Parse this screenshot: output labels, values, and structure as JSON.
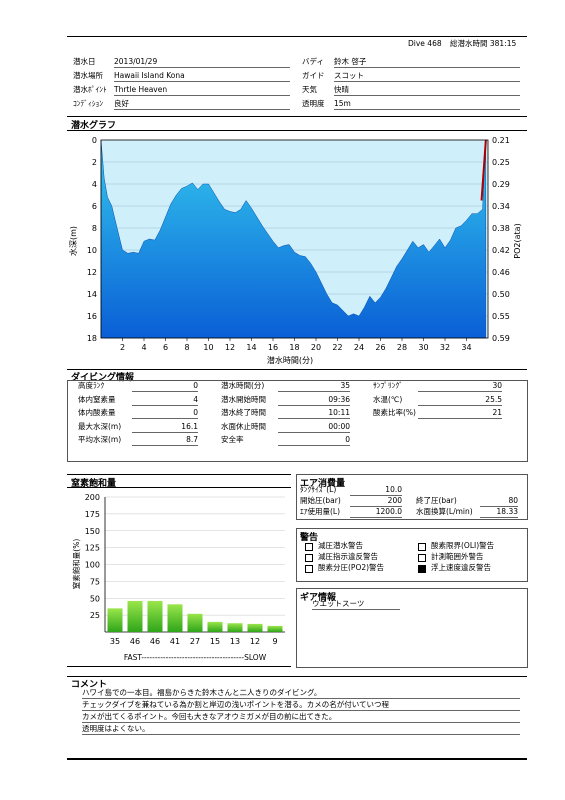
{
  "header": {
    "dive_number": "Dive 468",
    "total_time": "総潜水時間 381:15"
  },
  "info_left": [
    {
      "label": "潜水日",
      "value": "2013/01/29"
    },
    {
      "label": "潜水場所",
      "value": "Hawaii Island  Kona"
    },
    {
      "label": "潜水ﾎﾟｲﾝﾄ",
      "value": "Thrtle Heaven"
    },
    {
      "label": "ｺﾝﾃﾞｨｼｮﾝ",
      "value": "良好"
    }
  ],
  "info_right": [
    {
      "label": "バディ",
      "value": "鈴木 啓子"
    },
    {
      "label": "ガイド",
      "value": "スコット"
    },
    {
      "label": "天気",
      "value": "快晴"
    },
    {
      "label": "透明度",
      "value": "15m"
    }
  ],
  "dive_graph": {
    "title": "潜水グラフ",
    "xlabel": "潜水時間(分)",
    "ylabel_left": "水深(m)",
    "ylabel_right": "PO2(ata)"
  },
  "chart_data": [
    {
      "type": "area",
      "x_ticks": [
        "2",
        "4",
        "6",
        "8",
        "10",
        "12",
        "14",
        "16",
        "18",
        "20",
        "22",
        "24",
        "26",
        "28",
        "30",
        "32",
        "34"
      ],
      "y_ticks_left": [
        "0",
        "2",
        "4",
        "6",
        "8",
        "10",
        "12",
        "14",
        "16",
        "18"
      ],
      "y_ticks_right": [
        "0.21",
        "0.25",
        "0.29",
        "0.34",
        "0.38",
        "0.42",
        "0.46",
        "0.50",
        "0.55",
        "0.59"
      ],
      "xlim": [
        0,
        36
      ],
      "ylim_depth": [
        0,
        18
      ],
      "ylim_po2": [
        0.21,
        0.59
      ],
      "grid": "horizontal",
      "series": [
        {
          "x": [
            0,
            0.3,
            0.6,
            1.0,
            1.5,
            2.0,
            2.5,
            3.0,
            3.5,
            4.0,
            4.5,
            5.0,
            5.5,
            6.0,
            6.5,
            7.0,
            7.5,
            8.0,
            8.5,
            9.0,
            9.5,
            10.0,
            10.5,
            11.0,
            11.5,
            12.0,
            12.5,
            13.0,
            13.5,
            14.0,
            14.5,
            15.0,
            15.5,
            16.0,
            16.5,
            17.0,
            17.5,
            18.0,
            18.5,
            19.0,
            19.5,
            20.0,
            20.5,
            21.0,
            21.5,
            22.0,
            22.5,
            23.0,
            23.5,
            24.0,
            24.5,
            25.0,
            25.5,
            26.0,
            26.5,
            27.0,
            27.5,
            28.0,
            28.5,
            29.0,
            29.5,
            30.0,
            30.5,
            31.0,
            31.5,
            32.0,
            32.5,
            33.0,
            33.5,
            34.0,
            34.5,
            35.0,
            35.5,
            35.8
          ],
          "depth": [
            0,
            3.5,
            5.2,
            6.0,
            8.0,
            10.0,
            10.3,
            10.2,
            10.3,
            9.2,
            9.0,
            9.1,
            8.2,
            7.0,
            5.8,
            5.0,
            4.4,
            4.2,
            3.9,
            4.5,
            4.0,
            4.0,
            4.8,
            5.6,
            6.3,
            6.5,
            6.6,
            6.3,
            5.5,
            6.2,
            7.0,
            7.8,
            8.5,
            9.2,
            9.8,
            9.6,
            9.5,
            10.2,
            10.5,
            10.6,
            11.2,
            12.0,
            13.0,
            14.0,
            14.8,
            15.0,
            15.5,
            16.0,
            15.8,
            16.0,
            15.2,
            14.2,
            14.8,
            14.3,
            13.5,
            12.5,
            11.5,
            10.8,
            10.0,
            9.2,
            9.8,
            9.5,
            10.2,
            9.6,
            9.0,
            9.8,
            9.1,
            8.0,
            7.8,
            7.3,
            6.7,
            6.7,
            6.3,
            0
          ],
          "po2_ascent_segment": {
            "x": [
              35.4,
              35.8
            ],
            "depth": [
              5.5,
              0
            ]
          }
        }
      ]
    },
    {
      "type": "bar",
      "title": "窒素飽和量",
      "ylabel": "窒素飽和量(%)",
      "ylim": [
        0,
        200
      ],
      "y_ticks": [
        "200",
        "175",
        "150",
        "125",
        "100",
        "75",
        "50",
        "25"
      ],
      "categories": [
        "35",
        "46",
        "46",
        "41",
        "27",
        "15",
        "13",
        "12",
        "9"
      ],
      "values": [
        35,
        46,
        46,
        41,
        27,
        15,
        13,
        12,
        9
      ],
      "x_caption": "FAST--------------------------------------SLOW",
      "grid": "horizontal"
    }
  ],
  "diving_info": {
    "title": "ダイビング情報",
    "col1": [
      {
        "label": "高度ﾗﾝｸ",
        "value": "0"
      },
      {
        "label": "体内窒素量",
        "value": "4"
      },
      {
        "label": "体内酸素量",
        "value": "0"
      },
      {
        "label": "最大水深(m)",
        "value": "16.1"
      },
      {
        "label": "平均水深(m)",
        "value": "8.7"
      }
    ],
    "col2": [
      {
        "label": "潜水時間(分)",
        "value": "35"
      },
      {
        "label": "潜水開始時間",
        "value": "09:36"
      },
      {
        "label": "潜水終了時間",
        "value": "10:11"
      },
      {
        "label": "水面休止時間",
        "value": "00:00"
      },
      {
        "label": "安全率",
        "value": "0"
      }
    ],
    "col3": [
      {
        "label": "ｻﾝﾌﾟﾘﾝｸﾞ",
        "value": "30"
      },
      {
        "label": "水温(℃)",
        "value": "25.5"
      },
      {
        "label": "酸素比率(%)",
        "value": "21"
      }
    ]
  },
  "air": {
    "title": "エア消費量",
    "tank_size_label": "ﾀﾝｸｻｲｽﾞ(L)",
    "tank_size": "10.0",
    "start_label": "開始圧(bar)",
    "start": "200",
    "end_label": "終了圧(bar)",
    "end": "80",
    "used_label": "ｴｱ使用量(L)",
    "used": "1200.0",
    "surface_label": "水面換算(L/min)",
    "surface": "18.33"
  },
  "warnings": {
    "title": "警告",
    "items": [
      {
        "label": "減圧潜水警告",
        "checked": false
      },
      {
        "label": "酸素限界(OLI)警告",
        "checked": false
      },
      {
        "label": "減圧指示違反警告",
        "checked": false
      },
      {
        "label": "計測範囲外警告",
        "checked": false
      },
      {
        "label": "酸素分圧(PO2)警告",
        "checked": false
      },
      {
        "label": "浮上速度違反警告",
        "checked": true
      }
    ]
  },
  "gear": {
    "title": "ギア情報",
    "value": "ウエットスーツ"
  },
  "comment": {
    "title": "コメント",
    "lines": [
      "ハワイ島での一本目。福島からきた鈴木さんと二人きりのダイビング。",
      "チェックダイブを兼ねている為か割と岸辺の浅いポイントを潜る。カメの名が付いていつ程",
      "カメが出てくるポイント。今回も大きなアオウミガメが目の前に出てきた。",
      "透明度はよくない。"
    ]
  },
  "colors": {
    "graph_bg": "#cfeffb",
    "graph_fill_top": "#34c8ee",
    "graph_fill_bottom": "#0a5fd6",
    "ascent_warn": "#b00000",
    "bar_top": "#9ae64a",
    "bar_bottom": "#2fa51a"
  }
}
